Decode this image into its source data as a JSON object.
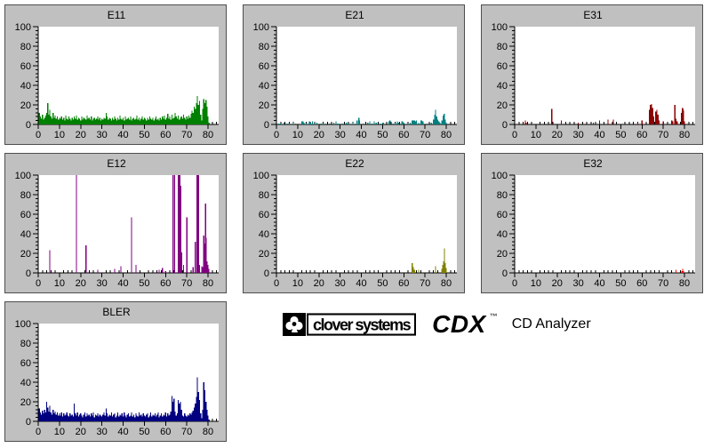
{
  "logo": {
    "brand": "clover systems",
    "product": "CDX",
    "trademark": "™",
    "subtitle": "CD Analyzer"
  },
  "chart_data": [
    {
      "type": "bar",
      "title": "E11",
      "color": "#008000",
      "xlim": [
        0,
        85
      ],
      "ylim": [
        0,
        100
      ],
      "x_ticks": [
        0,
        10,
        20,
        30,
        40,
        50,
        60,
        70,
        80
      ],
      "y_ticks": [
        0,
        20,
        40,
        60,
        80,
        100
      ],
      "x_minor_step": 2,
      "y_minor_step": 4,
      "series_format": "dense",
      "x0": 0.5,
      "dx": 0.5,
      "values": [
        12,
        8,
        6,
        10,
        5,
        7,
        9,
        12,
        22,
        10,
        15,
        8,
        6,
        12,
        7,
        9,
        6,
        8,
        5,
        7,
        6,
        8,
        5,
        7,
        4,
        9,
        6,
        5,
        8,
        6,
        4,
        7,
        5,
        8,
        6,
        9,
        5,
        7,
        6,
        4,
        8,
        5,
        7,
        6,
        5,
        9,
        6,
        7,
        5,
        8,
        4,
        6,
        7,
        5,
        6,
        8,
        5,
        7,
        4,
        6,
        5,
        7,
        6,
        12,
        8,
        5,
        7,
        6,
        4,
        7,
        5,
        8,
        6,
        4,
        7,
        5,
        9,
        6,
        5,
        7,
        4,
        8,
        5,
        6,
        7,
        5,
        8,
        4,
        6,
        7,
        5,
        6,
        9,
        5,
        7,
        4,
        6,
        8,
        5,
        7,
        6,
        4,
        7,
        5,
        8,
        6,
        5,
        7,
        4,
        6,
        8,
        5,
        6,
        4,
        7,
        5,
        8,
        6,
        9,
        5,
        7,
        11,
        6,
        8,
        5,
        10,
        6,
        7,
        12,
        8,
        6,
        9,
        5,
        7,
        8,
        6,
        10,
        7,
        5,
        8,
        6,
        9,
        7,
        11,
        14,
        12,
        18,
        16,
        22,
        29,
        20,
        24,
        10,
        4,
        16,
        26,
        22,
        25,
        18,
        8,
        2
      ]
    },
    {
      "type": "bar",
      "title": "E21",
      "color": "#008080",
      "xlim": [
        0,
        85
      ],
      "ylim": [
        0,
        100
      ],
      "x_ticks": [
        0,
        10,
        20,
        30,
        40,
        50,
        60,
        70,
        80
      ],
      "y_ticks": [
        0,
        20,
        40,
        60,
        80,
        100
      ],
      "x_minor_step": 2,
      "y_minor_step": 4,
      "series_format": "points",
      "points": [
        [
          1,
          1
        ],
        [
          2,
          1
        ],
        [
          3.5,
          2
        ],
        [
          5,
          1
        ],
        [
          6,
          1
        ],
        [
          8,
          2
        ],
        [
          9,
          1
        ],
        [
          12,
          3
        ],
        [
          12.5,
          3
        ],
        [
          13,
          2
        ],
        [
          14,
          1
        ],
        [
          15.5,
          3
        ],
        [
          16,
          2
        ],
        [
          17,
          3
        ],
        [
          18,
          1
        ],
        [
          19,
          2
        ],
        [
          21,
          1
        ],
        [
          22,
          1
        ],
        [
          23,
          1
        ],
        [
          25,
          1
        ],
        [
          27,
          2
        ],
        [
          28,
          3
        ],
        [
          29,
          1
        ],
        [
          31,
          1
        ],
        [
          33,
          2
        ],
        [
          34,
          1
        ],
        [
          36,
          2
        ],
        [
          38,
          4
        ],
        [
          38.8,
          7
        ],
        [
          39.2,
          4
        ],
        [
          41,
          1
        ],
        [
          43,
          2
        ],
        [
          44,
          3
        ],
        [
          45,
          1
        ],
        [
          46,
          3
        ],
        [
          47,
          2
        ],
        [
          49,
          1
        ],
        [
          50,
          2
        ],
        [
          50.5,
          2
        ],
        [
          53,
          3
        ],
        [
          53.5,
          4
        ],
        [
          55,
          1
        ],
        [
          56,
          2
        ],
        [
          57,
          3
        ],
        [
          57.5,
          2
        ],
        [
          59,
          3
        ],
        [
          59.5,
          3
        ],
        [
          60,
          2
        ],
        [
          62,
          1
        ],
        [
          63,
          2
        ],
        [
          64,
          4
        ],
        [
          64.5,
          4
        ],
        [
          65,
          4
        ],
        [
          65.5,
          3
        ],
        [
          66,
          4
        ],
        [
          67,
          2
        ],
        [
          68,
          4
        ],
        [
          68.5,
          4
        ],
        [
          69,
          3
        ],
        [
          71,
          1
        ],
        [
          73,
          2
        ],
        [
          74,
          5
        ],
        [
          74.5,
          10
        ],
        [
          75,
          15
        ],
        [
          75.5,
          8
        ],
        [
          76,
          5
        ],
        [
          76.5,
          3
        ],
        [
          77,
          2
        ],
        [
          78,
          4
        ],
        [
          78.5,
          9
        ],
        [
          79,
          11
        ],
        [
          79.5,
          5
        ],
        [
          80,
          2
        ]
      ]
    },
    {
      "type": "bar",
      "title": "E31",
      "color": "#8b0000",
      "xlim": [
        0,
        85
      ],
      "ylim": [
        0,
        100
      ],
      "x_ticks": [
        0,
        10,
        20,
        30,
        40,
        50,
        60,
        70,
        80
      ],
      "y_ticks": [
        0,
        20,
        40,
        60,
        80,
        100
      ],
      "x_minor_step": 2,
      "y_minor_step": 4,
      "series_format": "points",
      "points": [
        [
          5,
          4
        ],
        [
          5.3,
          2
        ],
        [
          17.5,
          16
        ],
        [
          22,
          4
        ],
        [
          30,
          2
        ],
        [
          37,
          2
        ],
        [
          40,
          4
        ],
        [
          44,
          5
        ],
        [
          46.5,
          5
        ],
        [
          58,
          2
        ],
        [
          60,
          4
        ],
        [
          63.5,
          15
        ],
        [
          64,
          20
        ],
        [
          64.5,
          21
        ],
        [
          65,
          17
        ],
        [
          65.5,
          8
        ],
        [
          66.5,
          13
        ],
        [
          67,
          15
        ],
        [
          67.5,
          10
        ],
        [
          68,
          4
        ],
        [
          70,
          3
        ],
        [
          74,
          4
        ],
        [
          74.5,
          3
        ],
        [
          75.5,
          20
        ],
        [
          76,
          6
        ],
        [
          76.5,
          3
        ],
        [
          78.5,
          12
        ],
        [
          79,
          17
        ],
        [
          79.3,
          16
        ],
        [
          79.6,
          14
        ],
        [
          80,
          3
        ]
      ]
    },
    {
      "type": "bar",
      "title": "E12",
      "color": "#800080",
      "xlim": [
        0,
        85
      ],
      "ylim": [
        0,
        100
      ],
      "x_ticks": [
        0,
        10,
        20,
        30,
        40,
        50,
        60,
        70,
        80
      ],
      "y_ticks": [
        0,
        20,
        40,
        60,
        80,
        100
      ],
      "x_minor_step": 2,
      "y_minor_step": 4,
      "series_format": "points",
      "points": [
        [
          5.5,
          23
        ],
        [
          18,
          100
        ],
        [
          22.5,
          28
        ],
        [
          28,
          3
        ],
        [
          36,
          4
        ],
        [
          39,
          7
        ],
        [
          44,
          57
        ],
        [
          46,
          8
        ],
        [
          57,
          3
        ],
        [
          58.5,
          5
        ],
        [
          60,
          2
        ],
        [
          63.5,
          100
        ],
        [
          64.3,
          100
        ],
        [
          66,
          100
        ],
        [
          66.4,
          100
        ],
        [
          66.8,
          100
        ],
        [
          67.2,
          89
        ],
        [
          67.6,
          21
        ],
        [
          68.5,
          8
        ],
        [
          70,
          57
        ],
        [
          73,
          6
        ],
        [
          74,
          32
        ],
        [
          74.8,
          100
        ],
        [
          75.2,
          100
        ],
        [
          75.6,
          100
        ],
        [
          76,
          8
        ],
        [
          77,
          7
        ],
        [
          77.5,
          6
        ],
        [
          78,
          38
        ],
        [
          78.4,
          30
        ],
        [
          78.8,
          71
        ],
        [
          79.2,
          36
        ],
        [
          79.6,
          12
        ],
        [
          80,
          8
        ],
        [
          80.3,
          4
        ]
      ]
    },
    {
      "type": "bar",
      "title": "E22",
      "color": "#808000",
      "xlim": [
        0,
        85
      ],
      "ylim": [
        0,
        100
      ],
      "x_ticks": [
        0,
        10,
        20,
        30,
        40,
        50,
        60,
        70,
        80
      ],
      "y_ticks": [
        0,
        20,
        40,
        60,
        80,
        100
      ],
      "x_minor_step": 2,
      "y_minor_step": 4,
      "series_format": "points",
      "points": [
        [
          64,
          10
        ],
        [
          64.4,
          6
        ],
        [
          65,
          3
        ],
        [
          67,
          3
        ],
        [
          75,
          7
        ],
        [
          78,
          4
        ],
        [
          78.4,
          8
        ],
        [
          78.8,
          12
        ],
        [
          79.2,
          25
        ],
        [
          79.6,
          10
        ],
        [
          80,
          5
        ]
      ]
    },
    {
      "type": "bar",
      "title": "E32",
      "color": "#ff0000",
      "xlim": [
        0,
        85
      ],
      "ylim": [
        0,
        100
      ],
      "x_ticks": [
        0,
        10,
        20,
        30,
        40,
        50,
        60,
        70,
        80
      ],
      "y_ticks": [
        0,
        20,
        40,
        60,
        80,
        100
      ],
      "x_minor_step": 2,
      "y_minor_step": 4,
      "series_format": "points",
      "points": [
        [
          76,
          3
        ],
        [
          78.8,
          2
        ],
        [
          79.2,
          4
        ],
        [
          79.6,
          2
        ]
      ]
    },
    {
      "type": "bar",
      "title": "BLER",
      "color": "#000080",
      "xlim": [
        0,
        85
      ],
      "ylim": [
        0,
        100
      ],
      "x_ticks": [
        0,
        10,
        20,
        30,
        40,
        50,
        60,
        70,
        80
      ],
      "y_ticks": [
        0,
        20,
        40,
        60,
        80,
        100
      ],
      "x_minor_step": 2,
      "y_minor_step": 4,
      "series_format": "dense",
      "x0": 0.5,
      "dx": 0.5,
      "values": [
        13,
        9,
        7,
        11,
        8,
        12,
        9,
        20,
        14,
        10,
        16,
        9,
        7,
        12,
        8,
        10,
        7,
        9,
        6,
        8,
        6,
        9,
        5,
        8,
        6,
        7,
        9,
        6,
        5,
        8,
        6,
        7,
        5,
        18,
        8,
        6,
        9,
        5,
        7,
        8,
        6,
        4,
        7,
        9,
        5,
        8,
        6,
        7,
        5,
        8,
        6,
        9,
        4,
        7,
        6,
        8,
        5,
        7,
        6,
        5,
        7,
        9,
        6,
        13,
        8,
        5,
        7,
        6,
        9,
        5,
        7,
        8,
        4,
        6,
        9,
        5,
        7,
        6,
        8,
        5,
        9,
        6,
        4,
        7,
        8,
        5,
        6,
        9,
        5,
        7,
        4,
        8,
        6,
        5,
        9,
        6,
        7,
        5,
        8,
        6,
        5,
        7,
        8,
        4,
        6,
        9,
        5,
        7,
        6,
        8,
        5,
        7,
        9,
        4,
        6,
        8,
        5,
        7,
        6,
        9,
        5,
        8,
        6,
        7,
        10,
        26,
        20,
        23,
        10,
        6,
        8,
        22,
        18,
        20,
        12,
        6,
        5,
        8,
        6,
        5,
        7,
        6,
        8,
        7,
        9,
        11,
        14,
        18,
        25,
        45,
        30,
        22,
        8,
        3,
        12,
        40,
        32,
        20,
        12,
        6,
        2
      ]
    }
  ]
}
